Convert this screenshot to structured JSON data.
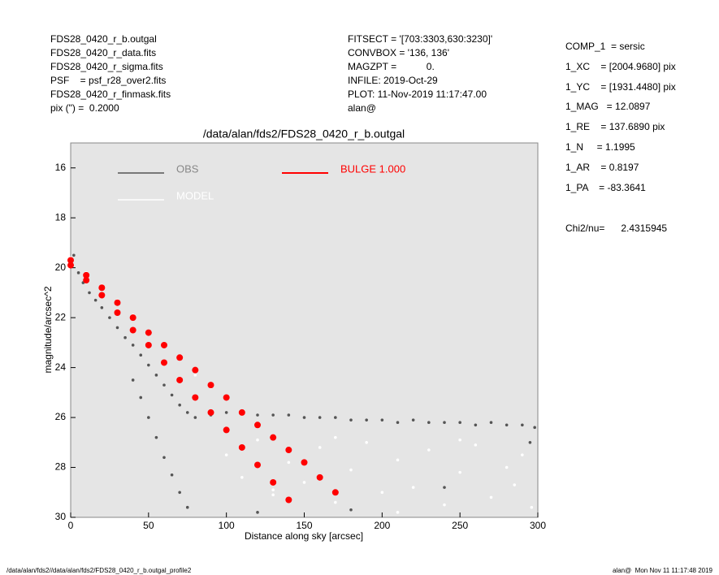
{
  "header": {
    "left": [
      "FDS28_0420_r_b.outgal",
      "FDS28_0420_r_data.fits",
      "FDS28_0420_r_sigma.fits",
      "PSF    = psf_r28_over2.fits",
      "FDS28_0420_r_finmask.fits",
      "pix (\") =  0.2000"
    ],
    "middle": [
      "FITSECT = '[703:3303,630:3230]'",
      "CONVBOX = '136, 136'",
      "MAGZPT =           0.",
      "INFILE: 2019-Oct-29",
      "PLOT: 11-Nov-2019 11:17:47.00",
      "alan@"
    ],
    "right": [
      "COMP_1  = sersic",
      "1_XC    = [2004.9680] pix",
      "1_YC    = [1931.4480] pix",
      "1_MAG   = 12.0897",
      "1_RE    = 137.6890 pix",
      "1_N     = 1.1995",
      "1_AR    = 0.8197",
      "1_PA    = -83.3641"
    ],
    "chi2": "Chi2/nu=      2.4315945"
  },
  "footer": {
    "left": "/data/alan/fds2//data/alan/fds2/FDS28_0420_r_b.outgal_profile2",
    "right": "alan@  Mon Nov 11 11:17:48 2019"
  },
  "chart_data": {
    "type": "scatter",
    "title": "/data/alan/fds2/FDS28_0420_r_b.outgal",
    "xlabel": "Distance along sky [arcsec]",
    "ylabel": "magnitude/arcsec^2",
    "xlim": [
      0,
      300
    ],
    "ylim": [
      30,
      15
    ],
    "xticks": [
      0,
      50,
      100,
      150,
      200,
      250,
      300
    ],
    "yticks": [
      16,
      18,
      20,
      22,
      24,
      26,
      28,
      30
    ],
    "series": [
      {
        "name": "OBS",
        "color": "#555555",
        "x": [
          2,
          5,
          8,
          12,
          16,
          20,
          25,
          30,
          35,
          40,
          45,
          50,
          55,
          60,
          65,
          70,
          75,
          80,
          90,
          100,
          110,
          120,
          130,
          140,
          150,
          160,
          170,
          180,
          190,
          200,
          210,
          220,
          230,
          240,
          250,
          260,
          270,
          280,
          290,
          298,
          40,
          45,
          50,
          55,
          60,
          65,
          70,
          75,
          120,
          180,
          240,
          295
        ],
        "values": [
          19.5,
          20.2,
          20.6,
          21.0,
          21.3,
          21.6,
          22.0,
          22.4,
          22.8,
          23.1,
          23.5,
          23.9,
          24.3,
          24.7,
          25.1,
          25.5,
          25.8,
          26.0,
          25.9,
          25.8,
          25.8,
          25.9,
          25.9,
          25.9,
          26.0,
          26.0,
          26.0,
          26.1,
          26.1,
          26.1,
          26.2,
          26.1,
          26.2,
          26.2,
          26.2,
          26.3,
          26.2,
          26.3,
          26.3,
          26.4,
          24.5,
          25.2,
          26.0,
          26.8,
          27.6,
          28.3,
          29.0,
          29.6,
          29.8,
          29.7,
          28.8,
          27.0
        ]
      },
      {
        "name": "MODEL",
        "color": "#ffffff",
        "x": [
          0,
          10,
          20,
          30,
          40,
          60,
          80,
          90,
          100,
          110,
          120,
          130,
          140,
          150,
          160,
          170,
          180,
          190,
          200,
          210,
          220,
          230,
          240,
          250,
          260,
          270,
          280,
          290,
          296,
          130,
          170,
          210,
          250,
          285
        ],
        "values": [
          19.6,
          20.2,
          20.7,
          21.3,
          21.9,
          23.1,
          24.3,
          24.8,
          27.5,
          28.4,
          26.9,
          29.1,
          27.8,
          28.6,
          27.2,
          29.4,
          28.1,
          27.0,
          29.0,
          27.7,
          28.8,
          27.3,
          29.5,
          28.2,
          27.1,
          29.2,
          28.0,
          27.5,
          29.6,
          28.9,
          26.8,
          29.8,
          26.9,
          28.7
        ]
      },
      {
        "name": "BULGE  1.000",
        "color": "#ff0000",
        "x": [
          0,
          10,
          20,
          30,
          40,
          50,
          60,
          70,
          80,
          90,
          100,
          110,
          120,
          130,
          140,
          150,
          160,
          170,
          0,
          10,
          20,
          30,
          40,
          50,
          60,
          70,
          80,
          90,
          100,
          110,
          120,
          130,
          140
        ],
        "values": [
          19.7,
          20.3,
          20.8,
          21.4,
          22.0,
          22.6,
          23.1,
          23.6,
          24.1,
          24.7,
          25.2,
          25.8,
          26.3,
          26.8,
          27.3,
          27.8,
          28.4,
          29.0,
          19.9,
          20.5,
          21.1,
          21.8,
          22.5,
          23.1,
          23.8,
          24.5,
          25.2,
          25.8,
          26.5,
          27.2,
          27.9,
          28.6,
          29.3
        ]
      }
    ]
  }
}
